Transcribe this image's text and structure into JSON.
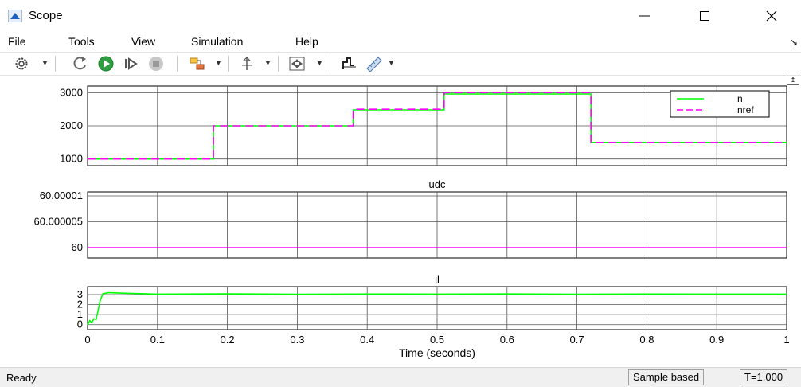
{
  "window": {
    "title": "Scope"
  },
  "menu": {
    "items": [
      "File",
      "Tools",
      "View",
      "Simulation",
      "Help"
    ]
  },
  "toolbar": {
    "icons": [
      "settings-gear-icon",
      "step-back-icon",
      "run-icon",
      "step-forward-icon",
      "stop-icon",
      "highlight-block-icon",
      "cursor-measure-icon",
      "zoom-fit-icon",
      "autoscale-icon",
      "data-cursor-icon"
    ]
  },
  "status": {
    "text": "Ready",
    "mode": "Sample based",
    "time": "T=1.000"
  },
  "colors": {
    "signal_green": "#00ff00",
    "signal_magenta": "#ff00ff",
    "grid": "#555555",
    "axes_bg": "#ffffff"
  },
  "chart_data": [
    {
      "type": "line",
      "title": "",
      "xlim": [
        0,
        1
      ],
      "ylim": [
        800,
        3200
      ],
      "yticks": [
        "1000",
        "2000",
        "3000"
      ],
      "grid": true,
      "legend": {
        "position": "top-right",
        "entries": [
          "n",
          "nref"
        ]
      },
      "series": [
        {
          "name": "n",
          "color": "#00ff00",
          "style": "solid",
          "x": [
            0,
            0.18,
            0.18,
            0.38,
            0.38,
            0.51,
            0.51,
            0.72,
            0.72,
            1.0
          ],
          "y": [
            1000,
            1000,
            2000,
            2000,
            2480,
            2480,
            2960,
            2960,
            1500,
            1500
          ]
        },
        {
          "name": "nref",
          "color": "#ff00ff",
          "style": "dashed",
          "x": [
            0,
            0.18,
            0.18,
            0.38,
            0.38,
            0.51,
            0.51,
            0.72,
            0.72,
            1.0
          ],
          "y": [
            1000,
            1000,
            2000,
            2000,
            2500,
            2500,
            3000,
            3000,
            1500,
            1500
          ]
        }
      ]
    },
    {
      "type": "line",
      "title": "udc",
      "xlim": [
        0,
        1
      ],
      "yticks": [
        "60",
        "60.000005",
        "60.00001"
      ],
      "grid": true,
      "series": [
        {
          "color": "#ff00ff",
          "style": "solid",
          "x": [
            0,
            1
          ],
          "y": [
            60,
            60
          ]
        }
      ]
    },
    {
      "type": "line",
      "title": "il",
      "xlim": [
        0,
        1
      ],
      "ylim": [
        -0.5,
        3.8
      ],
      "yticks": [
        "0",
        "1",
        "2",
        "3"
      ],
      "grid": true,
      "xticks": [
        "0",
        "0.1",
        "0.2",
        "0.3",
        "0.4",
        "0.5",
        "0.6",
        "0.7",
        "0.8",
        "0.9",
        "1"
      ],
      "xlabel": "Time (seconds)",
      "series": [
        {
          "color": "#00ff00",
          "style": "solid",
          "x": [
            0,
            0.003,
            0.006,
            0.009,
            0.012,
            0.015,
            0.018,
            0.022,
            0.03,
            0.05,
            0.1,
            0.2,
            0.3,
            0.4,
            0.5,
            0.6,
            0.7,
            0.8,
            0.9,
            1.0
          ],
          "y": [
            0,
            0.4,
            0.2,
            0.6,
            0.5,
            1.4,
            2.4,
            3.1,
            3.2,
            3.15,
            3.05,
            3.08,
            3.04,
            3.06,
            3.05,
            3.07,
            3.04,
            3.06,
            3.05,
            3.05
          ]
        }
      ]
    }
  ]
}
